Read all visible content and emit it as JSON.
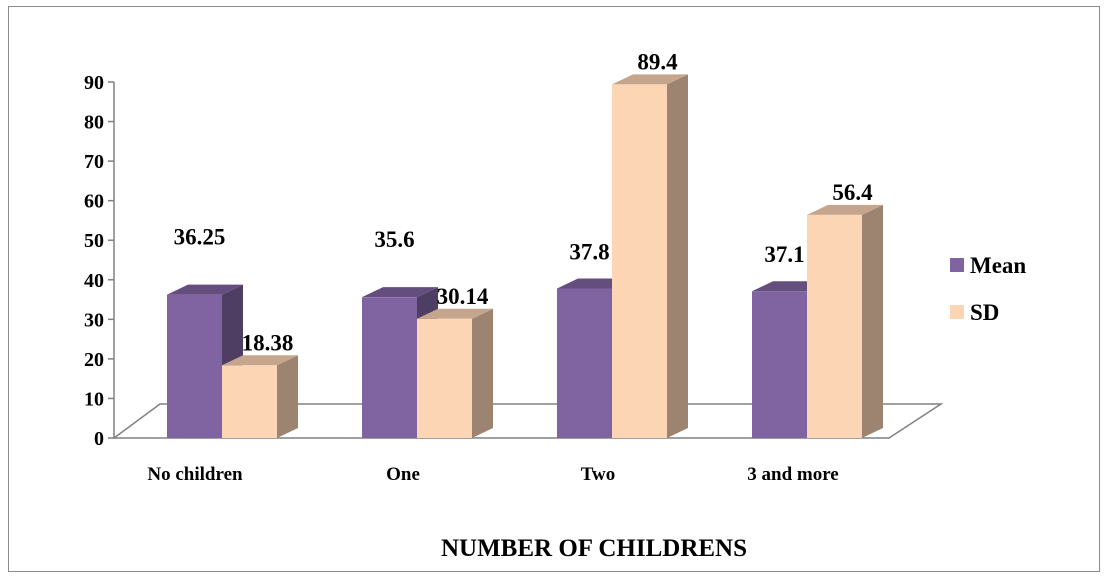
{
  "chart_data": {
    "type": "bar",
    "categories": [
      "No children",
      "One",
      "Two",
      "3 and more"
    ],
    "series": [
      {
        "name": "Mean",
        "values": [
          36.25,
          35.6,
          37.8,
          37.1
        ],
        "labels": [
          "36.25",
          "35.6",
          "37.8",
          "37.1"
        ],
        "color": "#8064A2"
      },
      {
        "name": "SD",
        "values": [
          18.38,
          30.14,
          89.4,
          56.4
        ],
        "labels": [
          "18.38",
          "30.14",
          "89.4",
          "56.4"
        ],
        "color": "#FCD5B5"
      }
    ],
    "xlabel": "NUMBER OF CHILDRENS",
    "ylabel": "",
    "ylim": [
      0,
      90
    ],
    "yticks": [
      "0",
      "10",
      "20",
      "30",
      "40",
      "50",
      "60",
      "70",
      "80",
      "90"
    ],
    "legend_position": "right",
    "grid": false,
    "style": "3d-clustered-column"
  }
}
